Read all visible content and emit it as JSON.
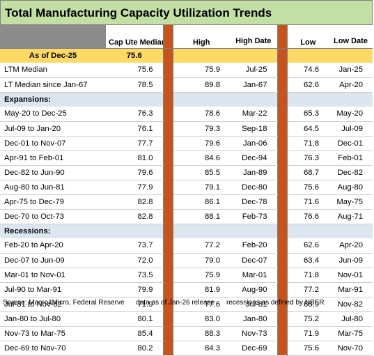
{
  "title": "Total Manufacturing Capacity Utilization Trends",
  "headers": {
    "cap_ute_median": "Cap Ute Median",
    "high": "High",
    "high_date": "High Date",
    "low": "Low",
    "low_date": "Low Date"
  },
  "as_of": {
    "label": "As of Dec-25",
    "value": "75.6"
  },
  "summary_rows": [
    {
      "label": "LTM Median",
      "median": "75.6",
      "high": "75.9",
      "high_date": "Jul-25",
      "low": "74.6",
      "low_date": "Jan-25"
    },
    {
      "label": "LT Median since Jan-67",
      "median": "78.5",
      "high": "89.8",
      "high_date": "Jan-67",
      "low": "62.6",
      "low_date": "Apr-20"
    }
  ],
  "expansions_label": "Expansions:",
  "expansions": [
    {
      "label": "May-20 to Dec-25",
      "median": "76.3",
      "high": "78.6",
      "high_date": "Mar-22",
      "low": "65.3",
      "low_date": "May-20"
    },
    {
      "label": "Jul-09 to Jan-20",
      "median": "76.1",
      "high": "79.3",
      "high_date": "Sep-18",
      "low": "64.5",
      "low_date": "Jul-09"
    },
    {
      "label": "Dec-01 to Nov-07",
      "median": "77.7",
      "high": "79.6",
      "high_date": "Jan-06",
      "low": "71.8",
      "low_date": "Dec-01"
    },
    {
      "label": "Apr-91 to Feb-01",
      "median": "81.0",
      "high": "84.6",
      "high_date": "Dec-94",
      "low": "76.3",
      "low_date": "Feb-01"
    },
    {
      "label": "Dec-82 to Jun-90",
      "median": "79.6",
      "high": "85.5",
      "high_date": "Jan-89",
      "low": "68.7",
      "low_date": "Dec-82"
    },
    {
      "label": "Aug-80 to Jun-81",
      "median": "77.9",
      "high": "79.1",
      "high_date": "Dec-80",
      "low": "75.6",
      "low_date": "Aug-80"
    },
    {
      "label": "Apr-75 to Dec-79",
      "median": "82.8",
      "high": "86.1",
      "high_date": "Dec-78",
      "low": "71.6",
      "low_date": "May-75"
    },
    {
      "label": "Dec-70 to Oct-73",
      "median": "82.8",
      "high": "88.1",
      "high_date": "Feb-73",
      "low": "76.6",
      "low_date": "Aug-71"
    }
  ],
  "recessions_label": "Recessions:",
  "recessions": [
    {
      "label": "Feb-20 to Apr-20",
      "median": "73.7",
      "high": "77.2",
      "high_date": "Feb-20",
      "low": "62.6",
      "low_date": "Apr-20"
    },
    {
      "label": "Dec-07 to Jun-09",
      "median": "72.0",
      "high": "79.0",
      "high_date": "Dec-07",
      "low": "63.4",
      "low_date": "Jun-09"
    },
    {
      "label": "Mar-01 to Nov-01",
      "median": "73.5",
      "high": "75.9",
      "high_date": "Mar-01",
      "low": "71.8",
      "low_date": "Nov-01"
    },
    {
      "label": "Jul-90 to Mar-91",
      "median": "79.9",
      "high": "81.9",
      "high_date": "Aug-90",
      "low": "77.2",
      "low_date": "Mar-91"
    },
    {
      "label": "Jul-81 to Nov-82",
      "median": "71.9",
      "high": "77.6",
      "high_date": "Jul-81",
      "low": "68.9",
      "low_date": "Nov-82"
    },
    {
      "label": "Jan-80 to Jul-80",
      "median": "80.1",
      "high": "83.0",
      "high_date": "Jan-80",
      "low": "75.2",
      "low_date": "Jul-80"
    },
    {
      "label": "Nov-73 to Mar-75",
      "median": "85.4",
      "high": "88.3",
      "high_date": "Nov-73",
      "low": "71.9",
      "low_date": "Mar-75"
    },
    {
      "label": "Dec-69 to Nov-70",
      "median": "80.2",
      "high": "84.3",
      "high_date": "Dec-69",
      "low": "75.6",
      "low_date": "Nov-70"
    }
  ],
  "footer": {
    "source": "Source: Macro4Micro, Federal Reserve",
    "release": "data as of Jan-26 release",
    "recessions_note": "recessions as defined by NBER"
  },
  "colors": {
    "title_bg": "#c3e0a4",
    "header_gray": "#8c8c8c",
    "as_of_bg": "#ffd966",
    "section_bg": "#dbe6f0",
    "separator": "#c5541f"
  }
}
